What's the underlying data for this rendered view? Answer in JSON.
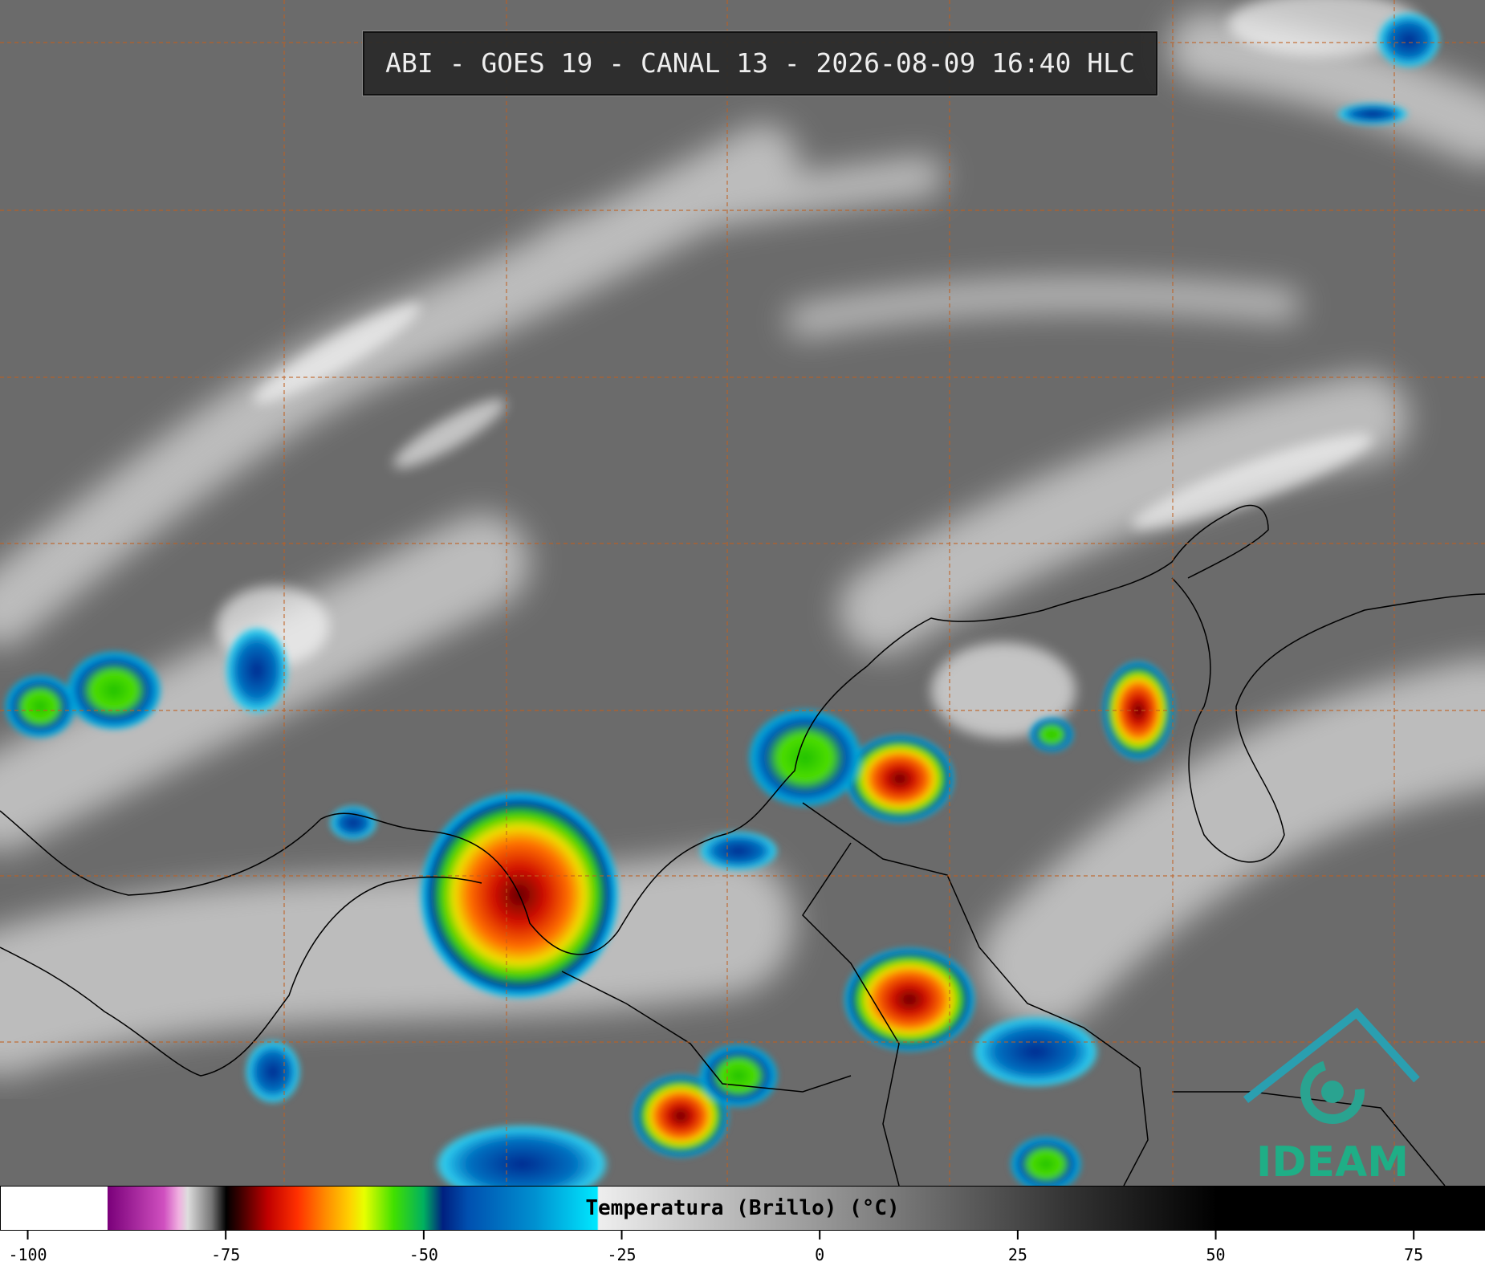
{
  "header": {
    "title": "ABI - GOES 19 - CANAL 13 - 2026-08-09 16:40 HLC"
  },
  "colorbar": {
    "label": "Temperatura (Brillo) (°C)",
    "xlim": [
      -103.5,
      84
    ],
    "xticks": [
      -100,
      -75,
      -50,
      -25,
      0,
      25,
      50,
      75
    ]
  },
  "logo": {
    "text": "IDEAM"
  }
}
